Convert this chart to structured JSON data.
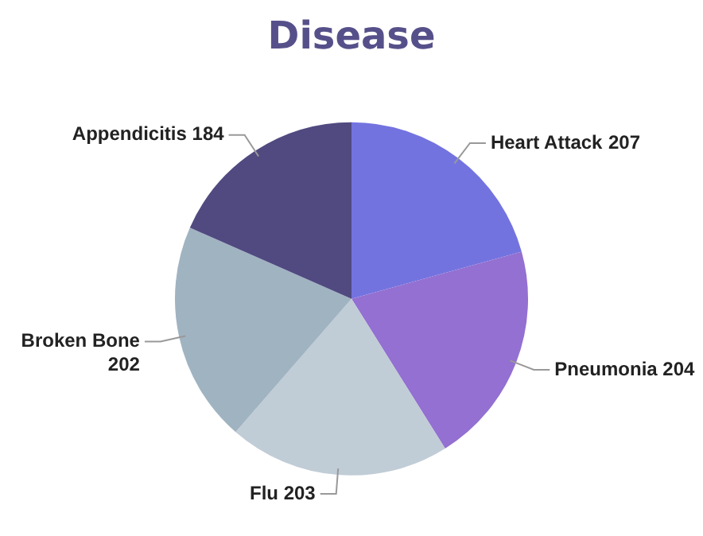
{
  "chart_data": {
    "type": "pie",
    "title": "Disease",
    "categories": [
      "Heart Attack",
      "Pneumonia",
      "Flu",
      "Broken Bone",
      "Appendicitis"
    ],
    "values": [
      207,
      204,
      203,
      202,
      184
    ],
    "colors": [
      "#7373e0",
      "#9370d1",
      "#c0ccd6",
      "#a0b3c1",
      "#504a80"
    ],
    "data_labels": true,
    "legend": false
  }
}
